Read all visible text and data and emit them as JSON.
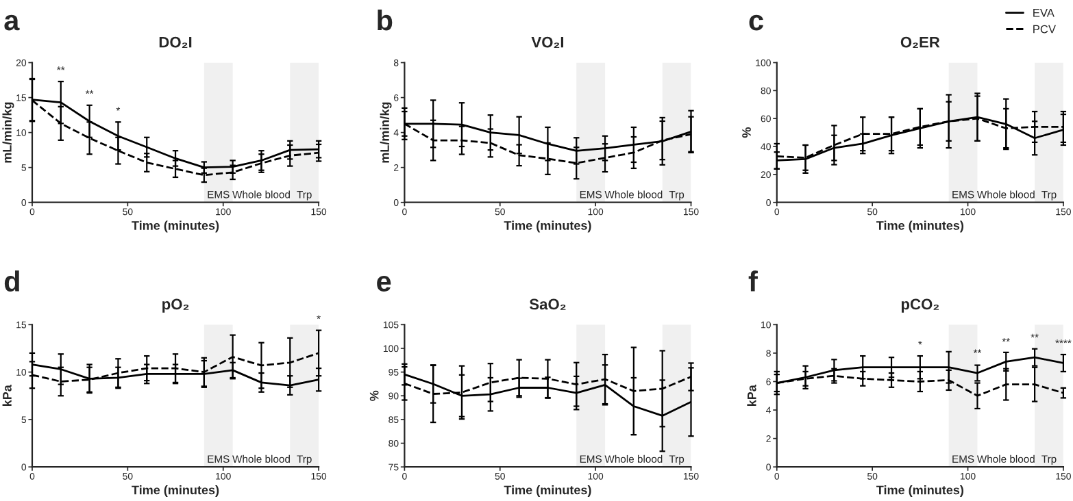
{
  "chart_data": [
    {
      "type": "line",
      "title": "DO₂I",
      "xlabel": "Time (minutes)",
      "ylabel": "mL/min/kg",
      "x": [
        0,
        15,
        30,
        45,
        60,
        75,
        90,
        105,
        120,
        135,
        150
      ],
      "xlim": [
        0,
        150
      ],
      "xticks": [
        0,
        50,
        100,
        150
      ],
      "ylim": [
        0,
        20
      ],
      "yticks": [
        0,
        5,
        10,
        15,
        20
      ],
      "grid": false,
      "marker": "none",
      "series": [
        {
          "color": "#000000",
          "line_style": "solid",
          "values": [
            14.7,
            14.3,
            11.6,
            9.5,
            7.9,
            6.3,
            5.0,
            5.1,
            6.0,
            7.5,
            7.6
          ],
          "errors": [
            3.0,
            3.0,
            2.3,
            2.0,
            1.4,
            1.1,
            0.8,
            0.9,
            1.4,
            1.3,
            1.2
          ]
        },
        {
          "color": "#000000",
          "line_style": "dashed",
          "values": [
            14.6,
            11.3,
            9.2,
            7.4,
            5.7,
            4.8,
            3.9,
            4.3,
            5.6,
            6.7,
            7.1
          ],
          "errors": [
            3.0,
            2.4,
            2.3,
            1.9,
            1.3,
            1.2,
            1.0,
            1.0,
            1.3,
            1.5,
            1.2
          ]
        }
      ],
      "bands": [
        {
          "axis": "x",
          "from": 90,
          "to": 105,
          "label": "EMS",
          "color": "#f0f0f0"
        },
        {
          "axis": "x",
          "from": 135,
          "to": 150,
          "label": "Trp",
          "color": "#f0f0f0"
        }
      ],
      "annotations": [
        "a",
        "Whole blood",
        {
          "text": "**",
          "x": 15,
          "y": 17.3
        },
        {
          "text": "**",
          "x": 30,
          "y": 13.9
        },
        {
          "text": "*",
          "x": 45,
          "y": 11.5
        }
      ]
    },
    {
      "type": "line",
      "title": "VO₂I",
      "xlabel": "Time (minutes)",
      "ylabel": "mL/min/kg",
      "x": [
        0,
        15,
        30,
        45,
        60,
        75,
        90,
        105,
        120,
        135,
        150
      ],
      "xlim": [
        0,
        150
      ],
      "xticks": [
        0,
        50,
        100,
        150
      ],
      "ylim": [
        0,
        8
      ],
      "yticks": [
        0,
        2,
        4,
        6,
        8
      ],
      "grid": false,
      "marker": "none",
      "series": [
        {
          "color": "#000000",
          "line_style": "solid",
          "values": [
            4.5,
            4.5,
            4.45,
            4.0,
            3.85,
            3.35,
            2.95,
            3.1,
            3.3,
            3.5,
            4.05
          ],
          "errors": [
            0.9,
            1.35,
            1.25,
            1.0,
            1.05,
            0.95,
            0.75,
            0.7,
            1.0,
            1.35,
            1.2
          ]
        },
        {
          "color": "#000000",
          "line_style": "dashed",
          "values": [
            4.5,
            3.55,
            3.55,
            3.4,
            2.7,
            2.5,
            2.25,
            2.55,
            2.85,
            3.55,
            3.9
          ],
          "errors": [
            0.7,
            1.15,
            0.8,
            0.8,
            0.6,
            0.9,
            0.9,
            0.8,
            0.9,
            1.1,
            1.0
          ]
        }
      ],
      "bands": [
        {
          "axis": "x",
          "from": 90,
          "to": 105,
          "label": "EMS",
          "color": "#f0f0f0"
        },
        {
          "axis": "x",
          "from": 135,
          "to": 150,
          "label": "Trp",
          "color": "#f0f0f0"
        }
      ],
      "annotations": [
        "b",
        "Whole blood"
      ]
    },
    {
      "type": "line",
      "title": "O₂ER",
      "xlabel": "Time (minutes)",
      "ylabel": "%",
      "x": [
        0,
        15,
        30,
        45,
        60,
        75,
        90,
        105,
        120,
        135,
        150
      ],
      "xlim": [
        0,
        150
      ],
      "xticks": [
        0,
        50,
        100,
        150
      ],
      "ylim": [
        0,
        100
      ],
      "yticks": [
        0,
        20,
        40,
        60,
        80,
        100
      ],
      "grid": false,
      "marker": "none",
      "legend": "top right",
      "series": [
        {
          "name": "EVA",
          "color": "#000000",
          "line_style": "solid",
          "values": [
            30,
            31,
            39,
            42,
            48,
            53,
            58,
            61,
            56,
            46,
            52
          ],
          "errors": [
            6,
            10,
            9,
            7,
            13,
            14,
            19,
            17,
            18,
            12,
            11
          ]
        },
        {
          "name": "PCV",
          "color": "#000000",
          "line_style": "dashed",
          "values": [
            33,
            32,
            41,
            49,
            49,
            54,
            58,
            60,
            53,
            54,
            54
          ],
          "errors": [
            9,
            9,
            14,
            12,
            12,
            13,
            14,
            16,
            14,
            11,
            11
          ]
        }
      ],
      "bands": [
        {
          "axis": "x",
          "from": 90,
          "to": 105,
          "label": "EMS",
          "color": "#f0f0f0"
        },
        {
          "axis": "x",
          "from": 135,
          "to": 150,
          "label": "Trp",
          "color": "#f0f0f0"
        }
      ],
      "annotations": [
        "c",
        "Whole blood"
      ]
    },
    {
      "type": "line",
      "title": "pO₂",
      "xlabel": "Time (minutes)",
      "ylabel": "kPa",
      "x": [
        0,
        15,
        30,
        45,
        60,
        75,
        90,
        105,
        120,
        135,
        150
      ],
      "xlim": [
        0,
        150
      ],
      "xticks": [
        0,
        50,
        100,
        150
      ],
      "ylim": [
        0,
        15
      ],
      "yticks": [
        0,
        5,
        10,
        15
      ],
      "grid": false,
      "marker": "none",
      "series": [
        {
          "color": "#000000",
          "line_style": "solid",
          "values": [
            10.8,
            10.3,
            9.3,
            9.4,
            9.8,
            9.8,
            9.8,
            10.2,
            8.9,
            8.6,
            9.2
          ],
          "errors": [
            1.2,
            1.6,
            1.5,
            1.1,
            1.0,
            1.0,
            1.4,
            0.8,
            1.0,
            1.0,
            1.2
          ]
        },
        {
          "color": "#000000",
          "line_style": "dashed",
          "values": [
            9.7,
            9.0,
            9.2,
            9.9,
            10.4,
            10.4,
            10.0,
            11.6,
            10.7,
            11.0,
            12.0
          ],
          "errors": [
            1.4,
            1.5,
            1.3,
            1.5,
            1.3,
            1.5,
            1.5,
            2.3,
            2.4,
            2.6,
            2.4
          ]
        }
      ],
      "bands": [
        {
          "axis": "x",
          "from": 90,
          "to": 105,
          "label": "EMS",
          "color": "#f0f0f0"
        },
        {
          "axis": "x",
          "from": 135,
          "to": 150,
          "label": "Trp",
          "color": "#f0f0f0"
        }
      ],
      "annotations": [
        "d",
        "Whole blood",
        {
          "text": "*",
          "x": 150,
          "y": 14.4
        }
      ]
    },
    {
      "type": "line",
      "title": "SaO₂",
      "xlabel": "Time (minutes)",
      "ylabel": "%",
      "x": [
        0,
        15,
        30,
        45,
        60,
        75,
        90,
        105,
        120,
        135,
        150
      ],
      "xlim": [
        0,
        150
      ],
      "xticks": [
        0,
        50,
        100,
        150
      ],
      "ylim": [
        75,
        105
      ],
      "yticks": [
        75,
        80,
        85,
        90,
        95,
        100,
        105
      ],
      "grid": false,
      "marker": "none",
      "series": [
        {
          "color": "#000000",
          "line_style": "solid",
          "values": [
            94.5,
            92.5,
            90,
            90.3,
            91.7,
            91.7,
            90.6,
            92.3,
            87.8,
            85.8,
            88.7
          ],
          "errors": [
            2.2,
            4,
            4.4,
            3.5,
            2,
            2.2,
            3.5,
            4.2,
            6,
            7.5,
            7.2
          ]
        },
        {
          "color": "#000000",
          "line_style": "dashed",
          "values": [
            92.6,
            90.4,
            90.7,
            92.8,
            93.8,
            93.6,
            92.4,
            93.5,
            91,
            91.5,
            94
          ],
          "errors": [
            3.5,
            6,
            5.6,
            4,
            3.8,
            4,
            4.6,
            5.2,
            9.2,
            8,
            2.9
          ]
        }
      ],
      "bands": [
        {
          "axis": "x",
          "from": 90,
          "to": 105,
          "label": "EMS",
          "color": "#f0f0f0"
        },
        {
          "axis": "x",
          "from": 135,
          "to": 150,
          "label": "Trp",
          "color": "#f0f0f0"
        }
      ],
      "annotations": [
        "e",
        "Whole blood"
      ]
    },
    {
      "type": "line",
      "title": "pCO₂",
      "xlabel": "Time (minutes)",
      "ylabel": "kPa",
      "x": [
        0,
        15,
        30,
        45,
        60,
        75,
        90,
        105,
        120,
        135,
        150
      ],
      "xlim": [
        0,
        150
      ],
      "xticks": [
        0,
        50,
        100,
        150
      ],
      "ylim": [
        0,
        10
      ],
      "yticks": [
        0,
        2,
        4,
        6,
        8,
        10
      ],
      "grid": false,
      "marker": "none",
      "series": [
        {
          "color": "#000000",
          "line_style": "solid",
          "values": [
            5.9,
            6.3,
            6.8,
            7.0,
            7.0,
            7.0,
            7.0,
            6.6,
            7.4,
            7.7,
            7.3
          ],
          "errors": [
            0.8,
            0.8,
            0.75,
            0.8,
            0.7,
            0.8,
            1.1,
            0.55,
            0.65,
            0.6,
            0.6
          ]
        },
        {
          "color": "#000000",
          "line_style": "dashed",
          "values": [
            5.9,
            6.2,
            6.4,
            6.2,
            6.1,
            6.0,
            6.1,
            5.0,
            5.8,
            5.8,
            5.2
          ],
          "errors": [
            0.6,
            0.5,
            0.5,
            0.5,
            0.5,
            0.7,
            0.7,
            0.9,
            1.1,
            1.2,
            0.35
          ]
        }
      ],
      "bands": [
        {
          "axis": "x",
          "from": 90,
          "to": 105,
          "label": "EMS",
          "color": "#f0f0f0"
        },
        {
          "axis": "x",
          "from": 135,
          "to": 150,
          "label": "Trp",
          "color": "#f0f0f0"
        }
      ],
      "annotations": [
        "f",
        "Whole blood",
        {
          "text": "*",
          "x": 75,
          "y": 7.8
        },
        {
          "text": "**",
          "x": 105,
          "y": 7.2
        },
        {
          "text": "**",
          "x": 120,
          "y": 8.0
        },
        {
          "text": "**",
          "x": 135,
          "y": 8.3
        },
        {
          "text": "****",
          "x": 150,
          "y": 7.9
        }
      ]
    }
  ]
}
